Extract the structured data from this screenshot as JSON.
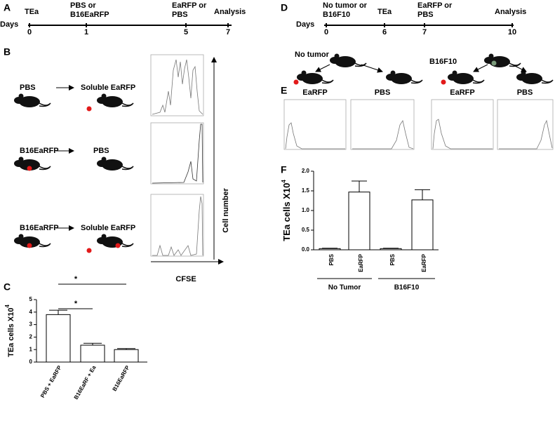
{
  "panel_labels": [
    "A",
    "B",
    "C",
    "D",
    "E",
    "F"
  ],
  "timeline_a": {
    "axis_label": "Days",
    "events": [
      {
        "day": 0,
        "label": [
          "TEa"
        ]
      },
      {
        "day": 1,
        "label": [
          "PBS or",
          "B16EaRFP"
        ]
      },
      {
        "day": 5,
        "label": [
          "EaRFP or",
          "PBS"
        ]
      },
      {
        "day": 7,
        "label": [
          "Analysis"
        ]
      }
    ]
  },
  "panel_b": {
    "rows": [
      {
        "left": "PBS",
        "right": "Soluble EaRFP"
      },
      {
        "left": "B16EaRFP",
        "right": "PBS"
      },
      {
        "left": "B16EaRFP",
        "right": "Soluble EaRFP"
      }
    ],
    "y_axis_label": "Cell number",
    "x_axis_label": "CFSE"
  },
  "timeline_d": {
    "axis_label": "Days",
    "events": [
      {
        "day": 0,
        "label": [
          "No tumor or",
          "B16F10"
        ]
      },
      {
        "day": 6,
        "label": [
          "TEa"
        ]
      },
      {
        "day": 7,
        "label": [
          "EaRFP or",
          "PBS"
        ]
      },
      {
        "day": 10,
        "label": [
          "Analysis"
        ]
      }
    ]
  },
  "panel_d": {
    "groups": [
      "No tumor",
      "B16F10"
    ]
  },
  "panel_e": {
    "histogram_labels": [
      "EaRFP",
      "PBS",
      "EaRFP",
      "PBS"
    ]
  },
  "chart_data": [
    {
      "type": "bar",
      "ylabel": "TEa cells X10",
      "ylabel_exponent": "4",
      "categories": [
        "PBS + EaRFP",
        "B16EaRF + Ea",
        "B16EaRFP"
      ],
      "values": [
        3.8,
        1.35,
        1.0
      ],
      "errors": [
        0.35,
        0.15,
        0.08
      ],
      "ylim": [
        0,
        5
      ],
      "yticks": [
        0,
        1,
        2,
        3,
        4,
        5
      ],
      "color": "#ffffff",
      "significance": [
        "*",
        "*"
      ]
    },
    {
      "type": "bar",
      "ylabel": "TEa cells X10",
      "ylabel_exponent": "4",
      "categories": [
        "PBS",
        "EaRFP",
        "PBS",
        "EaRFP"
      ],
      "values": [
        0.03,
        1.47,
        0.03,
        1.27
      ],
      "errors": [
        0.01,
        0.28,
        0.01,
        0.26
      ],
      "ylim": [
        0,
        2
      ],
      "yticks": [
        {
          "value": 0,
          "label": "0.0"
        },
        {
          "value": 0.5,
          "label": "0.5"
        },
        {
          "value": 1,
          "label": "1.0"
        },
        {
          "value": 1.5,
          "label": "1.5"
        },
        {
          "value": 2,
          "label": "2.0"
        }
      ],
      "color": "#ffffff",
      "groups": [
        "No Tumor",
        "B16F10"
      ]
    }
  ]
}
